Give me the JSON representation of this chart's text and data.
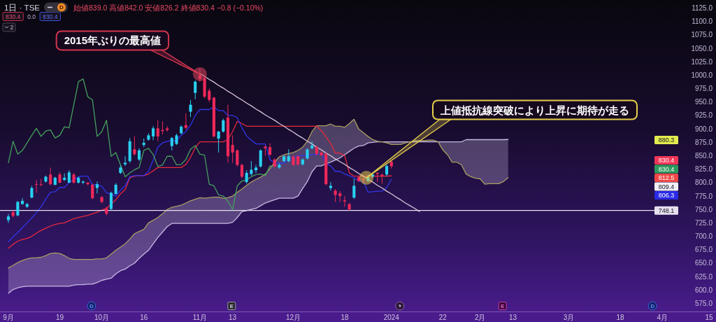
{
  "chart_data": {
    "type": "candlestick",
    "title": "1日 · TSE",
    "subtitle": "始値839.0 高値842.0 安値826.2 終値830.4 −0.8 (−0.10%)",
    "categories": [
      "9月",
      null,
      null,
      null,
      null,
      null,
      null,
      null,
      null,
      null,
      null,
      "19",
      null,
      null,
      null,
      null,
      null,
      null,
      null,
      null,
      "10月",
      null,
      null,
      null,
      null,
      null,
      null,
      null,
      null,
      "16",
      null,
      null,
      null,
      null,
      null,
      null,
      null,
      null,
      null,
      null,
      null,
      "11月",
      null,
      null,
      null,
      null,
      null,
      null,
      "13",
      null,
      null,
      null,
      null,
      null,
      null,
      null,
      null,
      null,
      null,
      null,
      null,
      "12月",
      null,
      null,
      null,
      null,
      null,
      null,
      null,
      null,
      null,
      null,
      "18",
      null,
      null,
      null,
      null,
      null,
      null,
      null,
      null,
      null,
      "2024",
      null,
      null,
      null,
      null,
      null,
      null,
      null,
      null,
      null,
      null,
      "22",
      null,
      null,
      null,
      null,
      null,
      null,
      null,
      "2月",
      null,
      null,
      null,
      null,
      null,
      null,
      "13",
      null,
      null,
      null,
      null,
      null,
      null,
      null,
      null,
      null,
      null,
      null,
      "3月",
      null,
      null,
      null,
      null,
      null,
      null,
      null,
      null,
      null,
      null,
      "18",
      null,
      null,
      null,
      null,
      null,
      null,
      null,
      null,
      "4月",
      null,
      null,
      null,
      null,
      null,
      null,
      null,
      null,
      null,
      "15"
    ],
    "ohlc": [
      [
        730,
        742,
        725,
        737
      ],
      [
        745,
        748,
        735,
        738
      ],
      [
        739,
        766,
        737,
        764
      ],
      [
        760,
        771,
        759,
        766
      ],
      [
        755,
        762,
        753,
        760
      ],
      [
        772,
        794,
        771,
        790
      ],
      [
        797,
        805,
        781,
        796
      ],
      [
        797,
        807,
        793,
        796
      ],
      [
        802,
        813,
        800,
        811
      ],
      [
        815,
        828,
        795,
        797
      ],
      [
        796,
        811,
        795,
        809
      ],
      [
        815,
        819,
        799,
        800
      ],
      [
        805,
        817,
        803,
        809
      ],
      [
        800,
        823,
        799,
        819
      ],
      [
        815,
        818,
        798,
        800
      ],
      [
        800,
        811,
        798,
        809
      ],
      [
        800,
        804,
        797,
        802
      ],
      [
        800,
        801,
        795,
        797
      ],
      [
        796,
        798,
        769,
        771
      ],
      [
        790,
        802,
        780,
        797
      ],
      [
        773,
        775,
        762,
        764
      ],
      [
        752,
        755,
        739,
        742
      ],
      [
        751,
        783,
        749,
        781
      ],
      [
        779,
        799,
        778,
        796
      ],
      [
        818,
        832,
        816,
        828
      ],
      [
        834,
        849,
        831,
        837
      ],
      [
        840,
        883,
        837,
        877
      ],
      [
        862,
        886,
        850,
        853
      ],
      [
        843,
        864,
        840,
        860
      ],
      [
        870,
        882,
        866,
        874
      ],
      [
        880,
        892,
        878,
        888
      ],
      [
        886,
        905,
        879,
        901
      ],
      [
        901,
        916,
        877,
        886
      ],
      [
        898,
        914,
        890,
        896
      ],
      [
        901,
        905,
        895,
        898
      ],
      [
        868,
        885,
        860,
        883
      ],
      [
        872,
        891,
        870,
        888
      ],
      [
        892,
        907,
        890,
        904
      ],
      [
        907,
        929,
        899,
        902
      ],
      [
        932,
        954,
        922,
        945
      ],
      [
        967,
        990,
        955,
        988
      ],
      [
        1000,
        1012,
        988,
        993
      ],
      [
        994,
        996,
        957,
        960
      ],
      [
        971,
        975,
        950,
        954
      ],
      [
        958,
        960,
        884,
        886
      ],
      [
        882,
        896,
        856,
        895
      ],
      [
        895,
        919,
        893,
        916
      ],
      [
        921,
        945,
        837,
        849
      ],
      [
        870,
        888,
        837,
        856
      ],
      [
        860,
        862,
        830,
        833
      ],
      [
        833,
        835,
        808,
        811
      ],
      [
        801,
        823,
        798,
        818
      ],
      [
        816,
        840,
        813,
        824
      ],
      [
        823,
        833,
        818,
        828
      ],
      [
        830,
        862,
        828,
        860
      ],
      [
        867,
        869,
        850,
        864
      ],
      [
        866,
        873,
        850,
        852
      ],
      [
        843,
        845,
        828,
        830
      ],
      [
        828,
        836,
        826,
        833
      ],
      [
        840,
        851,
        838,
        849
      ],
      [
        840,
        862,
        838,
        849
      ],
      [
        848,
        851,
        831,
        833
      ],
      [
        849,
        851,
        831,
        834
      ],
      [
        834,
        845,
        832,
        843
      ],
      [
        845,
        864,
        843,
        862
      ],
      [
        864,
        877,
        862,
        869
      ],
      [
        866,
        869,
        851,
        853
      ],
      [
        856,
        858,
        849,
        851
      ],
      [
        853,
        856,
        795,
        797
      ],
      [
        790,
        801,
        785,
        794
      ],
      [
        785,
        788,
        764,
        777
      ],
      [
        780,
        784,
        764,
        775
      ],
      [
        767,
        775,
        755,
        765
      ],
      [
        760,
        762,
        748.1,
        750
      ],
      [
        772,
        807,
        770,
        794
      ],
      [
        810,
        812,
        801,
        803
      ],
      [
        807,
        810,
        800,
        805
      ],
      [
        803,
        815,
        801,
        811
      ],
      [
        811,
        818,
        809,
        815
      ],
      [
        818,
        819,
        801,
        816
      ],
      [
        815,
        816,
        798,
        813
      ],
      [
        815,
        834,
        812,
        831
      ],
      [
        839.0,
        842.0,
        826.2,
        830.4
      ],
      null,
      null,
      null,
      null,
      null,
      null,
      null,
      null,
      null,
      null,
      null,
      null,
      null,
      null,
      null,
      null,
      null,
      null,
      null,
      null,
      null,
      null,
      null,
      null,
      null,
      null,
      null,
      null,
      null,
      null,
      null,
      null,
      null,
      null,
      null,
      null,
      null,
      null,
      null,
      null,
      null,
      null,
      null,
      null,
      null,
      null,
      null,
      null,
      null,
      null,
      null,
      null,
      null,
      null,
      null,
      null,
      null,
      null,
      null,
      null,
      null,
      null,
      null,
      null,
      null,
      null,
      null,
      null
    ],
    "colors": [
      "#29d0f0",
      "#f0285a",
      "#29d0f0",
      "#29d0f0",
      "#29d0f0",
      "#29d0f0",
      "#f0285a",
      "#f0285a",
      "#29d0f0",
      "#f0285a",
      "#29d0f0",
      "#f0285a",
      "#29d0f0",
      "#29d0f0",
      "#f0285a",
      "#29d0f0",
      "#29d0f0",
      "#f0285a",
      "#f0285a",
      "#29d0f0",
      "#f0285a",
      "#f0285a",
      "#29d0f0",
      "#29d0f0",
      "#29d0f0",
      "#29d0f0",
      "#29d0f0",
      "#f0285a",
      "#29d0f0",
      "#29d0f0",
      "#29d0f0",
      "#29d0f0",
      "#f0285a",
      "#f0285a",
      "#f0285a",
      "#29d0f0",
      "#29d0f0",
      "#29d0f0",
      "#f0285a",
      "#29d0f0",
      "#29d0f0",
      "#f0285a",
      "#f0285a",
      "#f0285a",
      "#f0285a",
      "#29d0f0",
      "#29d0f0",
      "#f0285a",
      "#f0285a",
      "#f0285a",
      "#f0285a",
      "#29d0f0",
      "#29d0f0",
      "#29d0f0",
      "#29d0f0",
      "#f0285a",
      "#f0285a",
      "#f0285a",
      "#29d0f0",
      "#29d0f0",
      "#29d0f0",
      "#f0285a",
      "#f0285a",
      "#29d0f0",
      "#29d0f0",
      "#29d0f0",
      "#f0285a",
      "#f0285a",
      "#f0285a",
      "#29d0f0",
      "#f0285a",
      "#f0285a",
      "#f0285a",
      "#f0285a",
      "#29d0f0",
      "#f0285a",
      "#f0285a",
      "#29d0f0",
      "#29d0f0",
      "#f0285a",
      "#f0285a",
      "#29d0f0",
      "#f0285a",
      null,
      null,
      null,
      null,
      null,
      null,
      null,
      null,
      null,
      null,
      null,
      null,
      null,
      null,
      null,
      null,
      null,
      null,
      null,
      null,
      null,
      null,
      null,
      null,
      null,
      null,
      null,
      null,
      null,
      null,
      null,
      null,
      null,
      null,
      null,
      null,
      null,
      null,
      null,
      null,
      null,
      null,
      null,
      null,
      null,
      null,
      null,
      null,
      null,
      null,
      null,
      null,
      null,
      null,
      null,
      null,
      null,
      null,
      null,
      null,
      null,
      null,
      null,
      null,
      null,
      null,
      null,
      null
    ],
    "series": [
      {
        "type": "line",
        "color": "#c9b8e2",
        "values": [
          594,
          601,
          604,
          606,
          607,
          607,
          607,
          607,
          607,
          607,
          607,
          607,
          607,
          607,
          609,
          610,
          610,
          611,
          611,
          614,
          618,
          620,
          622,
          630,
          636,
          639,
          645,
          650,
          659,
          667,
          674,
          686,
          698,
          708,
          718,
          724,
          724,
          724,
          724,
          724,
          724,
          724,
          724,
          724,
          724,
          724,
          724,
          724,
          726,
          735,
          746,
          748,
          750,
          752,
          757,
          762,
          765,
          768,
          771,
          771,
          771,
          771,
          775,
          789,
          802,
          820,
          831,
          831,
          835,
          838,
          842,
          846,
          852,
          858,
          864,
          868,
          869,
          874,
          875,
          876,
          876,
          876,
          876,
          876,
          876,
          876,
          876,
          876,
          876,
          876,
          876,
          876,
          876,
          876,
          876,
          876,
          876,
          876,
          880,
          880,
          880,
          880,
          880,
          880,
          880,
          880,
          880,
          880.3,
          null,
          null,
          null,
          null,
          null,
          null,
          null,
          null,
          null,
          null,
          null,
          null,
          null,
          null,
          null,
          null,
          null,
          null,
          null,
          null,
          null,
          null,
          null,
          null,
          null,
          null,
          null,
          null,
          null,
          null,
          null,
          null,
          null,
          null,
          null,
          null,
          null,
          null,
          null,
          null,
          null,
          null,
          null
        ],
        "lower": [
          594,
          601,
          604,
          606,
          607,
          607,
          607,
          607,
          607,
          607,
          607,
          607,
          607,
          607,
          609,
          610,
          610,
          611,
          611,
          614,
          618,
          620,
          622,
          630,
          636,
          639,
          645,
          650,
          659,
          667,
          674,
          686,
          698,
          708,
          718,
          724,
          724,
          724,
          724,
          724,
          724,
          724,
          724,
          724,
          724,
          724,
          724,
          724,
          726,
          735,
          746,
          748,
          750,
          752,
          757,
          762,
          765,
          768,
          771,
          771,
          771,
          771,
          775,
          789,
          802,
          820,
          831,
          831,
          835,
          838,
          842,
          846,
          852,
          858,
          864,
          868,
          869,
          874,
          875,
          876,
          876,
          874,
          871,
          871,
          871,
          874,
          876,
          876,
          876,
          876,
          876,
          876,
          876,
          861,
          852,
          838,
          838,
          833,
          816,
          811,
          808,
          807,
          797,
          798,
          798,
          798,
          802,
          809.4,
          null,
          null,
          null,
          null,
          null,
          null,
          null,
          null,
          null,
          null,
          null,
          null,
          null,
          null,
          null,
          null,
          null,
          null,
          null,
          null,
          null,
          null,
          null,
          null,
          null,
          null,
          null,
          null,
          null,
          null,
          null,
          null,
          null,
          null,
          null,
          null,
          null,
          null,
          null,
          null,
          null,
          null,
          null
        ],
        "upper": [
          641,
          646,
          651,
          655,
          658,
          660,
          660,
          661,
          664,
          668,
          669,
          668,
          664,
          659,
          657,
          657,
          657,
          657,
          657,
          658,
          658,
          660,
          667,
          674,
          680,
          686,
          695,
          705,
          709,
          713,
          725,
          730,
          735,
          742,
          750,
          754,
          756,
          758,
          762,
          766,
          769,
          772,
          771,
          772,
          773,
          773,
          771,
          772,
          775,
          782,
          788,
          795,
          801,
          806,
          810,
          816,
          826,
          838,
          848,
          852,
          854,
          856,
          860,
          866,
          877,
          895,
          906,
          906,
          906,
          909,
          905,
          905,
          903,
          910,
          918,
          900,
          893,
          886,
          880,
          877,
          876,
          876,
          876,
          876,
          876,
          876,
          876,
          878,
          878,
          878,
          879,
          879,
          876,
          876,
          876,
          876,
          876,
          876,
          880,
          880,
          880,
          880,
          880,
          880,
          880,
          880,
          880,
          880.3,
          null,
          null,
          null,
          null,
          null,
          null,
          null,
          null,
          null,
          null,
          null,
          null,
          null,
          null,
          null,
          null,
          null,
          null,
          null,
          null,
          null,
          null,
          null,
          null,
          null,
          null,
          null,
          null,
          null,
          null,
          null,
          null,
          null,
          null,
          null,
          null,
          null,
          null,
          null,
          null,
          null,
          null,
          null
        ]
      },
      {
        "type": "line",
        "color": "#a89c62",
        "values": [
          641,
          646,
          651,
          655,
          658,
          660,
          660,
          661,
          664,
          668,
          669,
          668,
          664,
          659,
          657,
          657,
          657,
          657,
          657,
          658,
          658,
          660,
          667,
          674,
          680,
          686,
          695,
          705,
          709,
          713,
          725,
          730,
          735,
          742,
          750,
          754,
          756,
          758,
          762,
          766,
          769,
          772,
          771,
          772,
          773,
          773,
          771,
          772,
          775,
          782,
          788,
          795,
          801,
          806,
          810,
          816,
          826,
          838,
          848,
          852,
          854,
          856,
          860,
          866,
          877,
          895,
          906,
          906,
          906,
          909,
          905,
          905,
          903,
          910,
          918,
          900,
          893,
          886,
          880,
          877,
          876,
          874,
          871,
          871,
          871,
          874,
          876,
          878,
          878,
          878,
          879,
          879,
          876,
          861,
          852,
          838,
          838,
          833,
          816,
          811,
          808,
          807,
          797,
          798,
          798,
          798,
          802,
          809.4,
          null,
          null,
          null,
          null,
          null,
          null,
          null,
          null,
          null,
          null,
          null,
          null,
          null,
          null,
          null,
          null,
          null,
          null,
          null,
          null,
          null,
          null,
          null,
          null,
          null,
          null,
          null,
          null,
          null,
          null,
          null,
          null,
          null,
          null,
          null,
          null,
          null,
          null,
          null,
          null,
          null,
          null,
          null
        ]
      },
      {
        "type": "line",
        "color": "#e8283c",
        "values": [
          678,
          685,
          691,
          694,
          696,
          700,
          706,
          711,
          715,
          719,
          722,
          724,
          725,
          729,
          733,
          735,
          737,
          739,
          742,
          745,
          749,
          752,
          760,
          768,
          779,
          787,
          809,
          812,
          813,
          813,
          816,
          822,
          828,
          828,
          828,
          828,
          828,
          828,
          834,
          847,
          865,
          876,
          876,
          876,
          876,
          876,
          876,
          880,
          895,
          914,
          910,
          905,
          905,
          905,
          905,
          905,
          905,
          905,
          905,
          905,
          905,
          905,
          905,
          905,
          905,
          905,
          905,
          897,
          885,
          873,
          855,
          855,
          850,
          818,
          812,
          812,
          812,
          812,
          812,
          812,
          812,
          812,
          812.5,
          null,
          null,
          null,
          null,
          null,
          null,
          null,
          null,
          null,
          null,
          null,
          null,
          null,
          null,
          null,
          null,
          null,
          null,
          null,
          null,
          null,
          null,
          null,
          null,
          null,
          null,
          null,
          null,
          null,
          null,
          null,
          null,
          null,
          null,
          null,
          null,
          null,
          null,
          null,
          null,
          null,
          null,
          null,
          null,
          null,
          null,
          null,
          null,
          null,
          null,
          null,
          null,
          null,
          null,
          null,
          null,
          null,
          null,
          null,
          null,
          null,
          null,
          null,
          null,
          null,
          null,
          null,
          null
        ]
      },
      {
        "type": "line",
        "color": "#2f36e8",
        "values": [
          690,
          699,
          707,
          716,
          725,
          734,
          744,
          755,
          769,
          782,
          783,
          791,
          791,
          800,
          805,
          811,
          812,
          812,
          796,
          796,
          793,
          781,
          779,
          775,
          786,
          794,
          811,
          813,
          813,
          813,
          821,
          842,
          866,
          874,
          877,
          878,
          878,
          888,
          895,
          907,
          925,
          936,
          936,
          936,
          941,
          934,
          934,
          925,
          925,
          921,
          902,
          887,
          879,
          872,
          872,
          872,
          843,
          836,
          836,
          836,
          843,
          846,
          850,
          850,
          850,
          852,
          852,
          854,
          836,
          831,
          821,
          821,
          816,
          813,
          809,
          803,
          802,
          782,
          783,
          784,
          784,
          791,
          806.3,
          null,
          null,
          null,
          null,
          null,
          null,
          null,
          null,
          null,
          null,
          null,
          null,
          null,
          null,
          null,
          null,
          null,
          null,
          null,
          null,
          null,
          null,
          null,
          null,
          null,
          null,
          null,
          null,
          null,
          null,
          null,
          null,
          null,
          null,
          null,
          null,
          null,
          null,
          null,
          null,
          null,
          null,
          null,
          null,
          null,
          null,
          null,
          null,
          null,
          null,
          null,
          null,
          null,
          null,
          null,
          null,
          null,
          null,
          null,
          null,
          null,
          null,
          null,
          null,
          null,
          null,
          null,
          null
        ]
      },
      {
        "type": "line",
        "color": "#45a05e",
        "values": [
          837,
          877,
          853,
          860,
          874,
          888,
          901,
          886,
          896,
          898,
          883,
          888,
          904,
          902,
          945,
          988,
          993,
          960,
          954,
          886,
          895,
          916,
          849,
          856,
          833,
          811,
          818,
          824,
          828,
          860,
          864,
          852,
          830,
          833,
          849,
          849,
          833,
          834,
          843,
          862,
          869,
          853,
          851,
          797,
          794,
          777,
          775,
          765,
          750,
          794,
          803,
          805,
          811,
          815,
          816,
          813,
          831,
          830.4,
          null,
          null,
          null,
          null,
          null,
          null,
          null,
          null,
          null,
          null,
          null,
          null,
          null,
          null,
          null,
          null,
          null,
          null,
          null,
          null,
          null,
          null,
          null,
          null,
          null,
          null,
          null,
          null,
          null,
          null,
          null,
          null,
          null,
          null,
          null,
          null,
          null,
          null,
          null,
          null,
          null,
          null,
          null,
          null,
          null,
          null,
          null,
          null,
          null,
          null,
          null,
          null,
          null,
          null,
          null,
          null,
          null,
          null,
          null,
          null,
          null,
          null,
          null,
          null,
          null,
          null,
          null,
          null,
          null,
          null,
          null,
          null,
          null,
          null,
          null,
          null,
          null,
          null,
          null,
          null,
          null,
          null,
          null,
          null,
          null,
          null,
          null,
          null,
          null,
          null,
          null,
          null,
          null
        ]
      },
      {
        "type": "line",
        "color": "#d9c4d9",
        "values": [
          null,
          null,
          null,
          null,
          null,
          null,
          null,
          null,
          null,
          null,
          null,
          null,
          null,
          null,
          null,
          null,
          null,
          null,
          null,
          null,
          null,
          null,
          null,
          null,
          null,
          null,
          null,
          null,
          null,
          null,
          null,
          null,
          null,
          null,
          null,
          null,
          null,
          null,
          null,
          null,
          null,
          1003,
          998,
          992,
          987,
          981,
          976,
          970,
          965,
          959,
          954,
          948,
          943,
          937,
          932,
          926,
          921,
          916,
          910,
          905,
          899,
          894,
          888,
          883,
          877,
          872,
          866,
          861,
          855,
          850,
          844,
          839,
          834,
          828,
          823,
          817,
          812,
          806,
          801,
          795,
          790,
          784,
          779,
          773,
          768,
          762,
          757,
          752,
          746,
          null,
          null,
          null,
          null,
          null,
          null,
          null,
          null,
          null,
          null,
          null,
          null,
          null,
          null,
          null,
          null,
          null,
          null,
          null,
          null,
          null,
          null,
          null,
          null,
          null,
          null,
          null,
          null,
          null,
          null,
          null,
          null,
          null,
          null,
          null,
          null,
          null,
          null,
          null,
          null,
          null,
          null,
          null,
          null,
          null,
          null,
          null,
          null,
          null,
          null,
          null,
          null,
          null,
          null,
          null,
          null,
          null,
          null,
          null,
          null,
          null,
          null
        ]
      }
    ],
    "ref_lines": [
      {
        "axis": "y",
        "value": 748.1,
        "label": "748.1",
        "color": "#e6e0f0"
      }
    ],
    "ylim": [
      560,
      1140
    ],
    "yticks": [
      {
        "value": 575,
        "label": "575.0"
      },
      {
        "value": 600,
        "label": "600.0"
      },
      {
        "value": 625,
        "label": "625.0"
      },
      {
        "value": 650,
        "label": "650.0"
      },
      {
        "value": 675,
        "label": "675.0"
      },
      {
        "value": 700,
        "label": "700.0"
      },
      {
        "value": 725,
        "label": "725.0"
      },
      {
        "value": 750,
        "label": "750.0"
      },
      {
        "value": 775,
        "label": "775.0"
      },
      {
        "value": 800,
        "label": "800.0"
      },
      {
        "value": 825,
        "label": "825.0"
      },
      {
        "value": 850,
        "label": "850.0"
      },
      {
        "value": 875,
        "label": "875.0"
      },
      {
        "value": 900,
        "label": "900.0"
      },
      {
        "value": 925,
        "label": "925.0"
      },
      {
        "value": 950,
        "label": "950.0"
      },
      {
        "value": 975,
        "label": "975.0"
      },
      {
        "value": 1000,
        "label": "1000.0"
      },
      {
        "value": 1025,
        "label": "1025.0"
      },
      {
        "value": 1050,
        "label": "1050.0"
      },
      {
        "value": 1075,
        "label": "1075.0"
      },
      {
        "value": 1100,
        "label": "1100.0"
      },
      {
        "value": 1125,
        "label": "1125.0"
      }
    ],
    "annotations": [
      {
        "text": "2015年ぶりの最高値",
        "x": "11月",
        "y": 1002
      },
      "上値抵抗線突破により上昇に期待が走る",
      "880.3",
      "830.4",
      "830.4",
      "812.5",
      "809.4",
      "806.3",
      "830.4",
      "0.0",
      "830.4",
      "2",
      "D",
      "D",
      "E",
      "E",
      "D"
    ]
  }
}
